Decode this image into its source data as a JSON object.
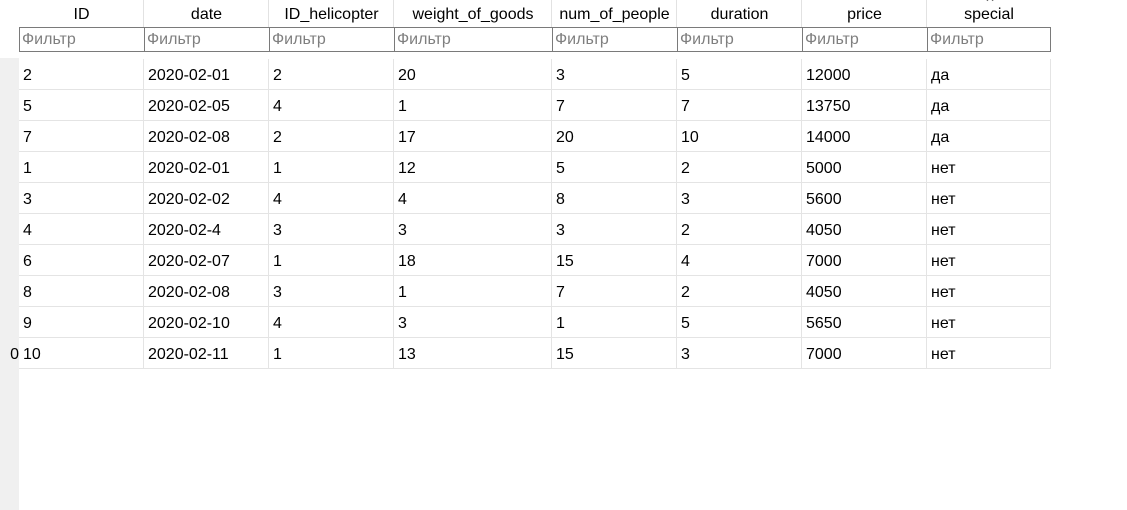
{
  "columns": [
    {
      "key": "id",
      "label": "ID"
    },
    {
      "key": "date",
      "label": "date"
    },
    {
      "key": "id_helicopter",
      "label": "ID_helicopter"
    },
    {
      "key": "weight_of_goods",
      "label": "weight_of_goods"
    },
    {
      "key": "num_of_people",
      "label": "num_of_people"
    },
    {
      "key": "duration",
      "label": "duration"
    },
    {
      "key": "price",
      "label": "price"
    },
    {
      "key": "special",
      "label": "special"
    }
  ],
  "filter_placeholder": "Фильтр",
  "close_icon": "close-icon",
  "row_numbers": [
    "",
    "",
    "",
    "",
    "",
    "",
    "",
    "",
    "",
    "0"
  ],
  "rows": [
    {
      "id": "2",
      "date": "2020-02-01",
      "id_helicopter": "2",
      "weight_of_goods": "20",
      "num_of_people": "3",
      "duration": "5",
      "price": "12000",
      "special": "да"
    },
    {
      "id": "5",
      "date": "2020-02-05",
      "id_helicopter": "4",
      "weight_of_goods": "1",
      "num_of_people": "7",
      "duration": "7",
      "price": "13750",
      "special": "да"
    },
    {
      "id": "7",
      "date": "2020-02-08",
      "id_helicopter": "2",
      "weight_of_goods": "17",
      "num_of_people": "20",
      "duration": "10",
      "price": "14000",
      "special": "да"
    },
    {
      "id": "1",
      "date": "2020-02-01",
      "id_helicopter": "1",
      "weight_of_goods": "12",
      "num_of_people": "5",
      "duration": "2",
      "price": "5000",
      "special": "нет"
    },
    {
      "id": "3",
      "date": "2020-02-02",
      "id_helicopter": "4",
      "weight_of_goods": "4",
      "num_of_people": "8",
      "duration": "3",
      "price": "5600",
      "special": "нет"
    },
    {
      "id": "4",
      "date": "2020-02-4",
      "id_helicopter": "3",
      "weight_of_goods": "3",
      "num_of_people": "3",
      "duration": "2",
      "price": "4050",
      "special": "нет"
    },
    {
      "id": "6",
      "date": "2020-02-07",
      "id_helicopter": "1",
      "weight_of_goods": "18",
      "num_of_people": "15",
      "duration": "4",
      "price": "7000",
      "special": "нет"
    },
    {
      "id": "8",
      "date": "2020-02-08",
      "id_helicopter": "3",
      "weight_of_goods": "1",
      "num_of_people": "7",
      "duration": "2",
      "price": "4050",
      "special": "нет"
    },
    {
      "id": "9",
      "date": "2020-02-10",
      "id_helicopter": "4",
      "weight_of_goods": "3",
      "num_of_people": "1",
      "duration": "5",
      "price": "5650",
      "special": "нет"
    },
    {
      "id": "10",
      "date": "2020-02-11",
      "id_helicopter": "1",
      "weight_of_goods": "13",
      "num_of_people": "15",
      "duration": "3",
      "price": "7000",
      "special": "нет"
    }
  ]
}
